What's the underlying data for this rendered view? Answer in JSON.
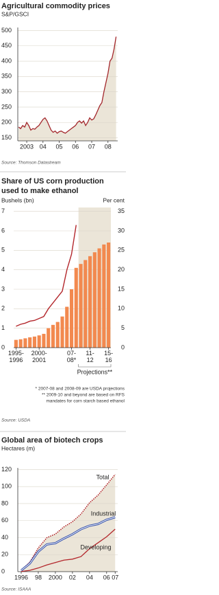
{
  "chart_data": [
    {
      "type": "line",
      "title": "Agricultural commodity prices",
      "subtitle": "S&P/GSCI",
      "x": [
        2002.5,
        2002.625,
        2002.75,
        2002.875,
        2003,
        2003.125,
        2003.25,
        2003.375,
        2003.5,
        2003.625,
        2003.75,
        2003.875,
        2004,
        2004.125,
        2004.25,
        2004.375,
        2004.5,
        2004.625,
        2004.75,
        2004.875,
        2005,
        2005.125,
        2005.25,
        2005.375,
        2005.5,
        2005.625,
        2005.75,
        2005.875,
        2006,
        2006.125,
        2006.25,
        2006.375,
        2006.5,
        2006.625,
        2006.75,
        2006.875,
        2007,
        2007.125,
        2007.25,
        2007.375,
        2007.5,
        2007.625,
        2007.75,
        2007.875,
        2008,
        2008.125,
        2008.25,
        2008.375,
        2008.5
      ],
      "series": [
        {
          "color": "#a3262b",
          "fill": "#ebe5d8",
          "values": [
            185,
            180,
            190,
            185,
            200,
            190,
            175,
            180,
            178,
            185,
            190,
            200,
            210,
            215,
            205,
            190,
            175,
            168,
            172,
            165,
            170,
            172,
            168,
            165,
            170,
            175,
            180,
            185,
            190,
            200,
            205,
            198,
            205,
            190,
            200,
            215,
            208,
            212,
            225,
            240,
            255,
            265,
            300,
            330,
            360,
            400,
            410,
            440,
            480
          ]
        }
      ],
      "xlim": [
        2002.45,
        2008.6
      ],
      "xticks": [
        {
          "value": 2003,
          "label": "2003"
        },
        {
          "value": 2004,
          "label": "04"
        },
        {
          "value": 2005,
          "label": "05"
        },
        {
          "value": 2006,
          "label": "06"
        },
        {
          "value": 2007,
          "label": "07"
        },
        {
          "value": 2008,
          "label": "08"
        }
      ],
      "ylim": [
        140,
        510
      ],
      "yticks": [
        150,
        200,
        250,
        300,
        350,
        400,
        450,
        500
      ],
      "grid": true,
      "source": "Source: Thomson Datastream"
    },
    {
      "type": "bar",
      "title": [
        "Share of US corn production",
        "used to make ethanol"
      ],
      "ylabel": "Bushels (bn)",
      "y2label": "Per cent",
      "categories": [
        "1995-1996",
        null,
        null,
        null,
        null,
        "2000-2001",
        null,
        null,
        null,
        null,
        null,
        null,
        "07-08*",
        null,
        null,
        null,
        "11-12",
        null,
        null,
        null,
        "15-16"
      ],
      "series": [
        {
          "color": "#f2894f",
          "values": [
            0.4,
            0.43,
            0.48,
            0.53,
            0.57,
            0.63,
            0.71,
            1.0,
            1.17,
            1.32,
            1.6,
            2.1,
            3.0,
            4.1,
            4.3,
            4.5,
            4.7,
            4.9,
            5.1,
            5.3,
            5.4
          ]
        },
        {
          "type": "line",
          "axis": "y2",
          "color": "#b3262b",
          "values": [
            5.5,
            6,
            6.3,
            6.8,
            7,
            7.5,
            8,
            10,
            11.5,
            13,
            14.5,
            20,
            24,
            31.5,
            null,
            null,
            null,
            null,
            null,
            null,
            null
          ]
        }
      ],
      "ylim": [
        0,
        7.2
      ],
      "yticks": [
        0,
        1,
        2,
        3,
        4,
        5,
        6,
        7
      ],
      "y2lim": [
        0,
        36
      ],
      "y2ticks": [
        0,
        5,
        10,
        15,
        20,
        25,
        30,
        35
      ],
      "grid": true,
      "projections_label": "Projections**",
      "notes": [
        "* 2007-08 and 2008-09 are USDA projections",
        "** 2009-10 and beyond are based on RFS",
        "mandates for corn starch based ethanol"
      ],
      "source": "Source: USDA"
    },
    {
      "type": "line",
      "title": "Global area of biotech crops",
      "subtitle": "Hectares (m)",
      "x": [
        1996,
        1997,
        1998,
        1999,
        2000,
        2001,
        2002,
        2003,
        2004,
        2005,
        2006,
        2007
      ],
      "series": [
        {
          "name": "Total",
          "color": "#b3262b",
          "dash": true,
          "fill": "#ebe5d8",
          "values": [
            1.7,
            11,
            27.8,
            39.9,
            44.2,
            52.6,
            58.7,
            67.7,
            81,
            90,
            102,
            114.3
          ]
        },
        {
          "name": "Industrial",
          "color": "#2c4aa8",
          "double": true,
          "values": [
            1.5,
            9.5,
            23.5,
            32,
            33.5,
            39,
            44,
            50,
            54,
            56,
            61,
            64
          ]
        },
        {
          "name": "Developing",
          "color": "#b3262b",
          "values": [
            0.2,
            1.5,
            4.3,
            7.9,
            10.7,
            13.5,
            14.7,
            17.7,
            27,
            34,
            41,
            50
          ]
        }
      ],
      "xlim": [
        1995.6,
        2007.3
      ],
      "xticks": [
        1996,
        {
          "value": 1998,
          "label": "98"
        },
        2000,
        {
          "value": 2002,
          "label": "02"
        },
        {
          "value": 2004,
          "label": "04"
        },
        {
          "value": 2006,
          "label": "06"
        },
        {
          "value": 2007,
          "label": "07"
        }
      ],
      "ylim": [
        0,
        122
      ],
      "yticks": [
        0,
        20,
        40,
        60,
        80,
        100,
        120
      ],
      "grid": true,
      "source": "Source: ISAAA"
    }
  ]
}
